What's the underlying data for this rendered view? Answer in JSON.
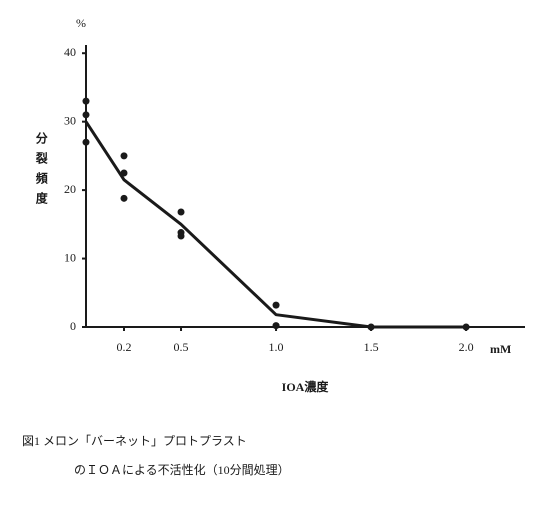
{
  "chart_data": {
    "type": "scatter",
    "y_unit": "%",
    "ylabel": "分裂頻度",
    "x_unit": "mM",
    "xlabel": "IOA濃度",
    "points": {
      "x": [
        0,
        0,
        0,
        0.2,
        0.2,
        0.2,
        0.5,
        0.5,
        0.5,
        1,
        1,
        1.5,
        2
      ],
      "y": [
        33,
        31,
        27,
        25,
        22.5,
        18.8,
        16.8,
        13.8,
        13.3,
        3.2,
        0.2,
        0,
        0
      ]
    },
    "line": {
      "x": [
        0,
        0.2,
        0.5,
        1,
        1.5,
        2
      ],
      "y": [
        30,
        21.5,
        15,
        1.8,
        0,
        0
      ]
    },
    "color": "#1a1a1a",
    "xlim": [
      0,
      2.31
    ],
    "ylim": [
      0,
      41.2
    ],
    "xticks": [
      0.2,
      0.5,
      {
        "value": 1,
        "label": "1.0"
      },
      1.5,
      {
        "value": 2,
        "label": "2.0"
      }
    ],
    "yticks": [
      0,
      10,
      20,
      30,
      40
    ],
    "caption": [
      "図1 メロン「バーネット」プロトプラスト",
      "のＩＯＡによる不活性化（10分間処理）"
    ]
  }
}
